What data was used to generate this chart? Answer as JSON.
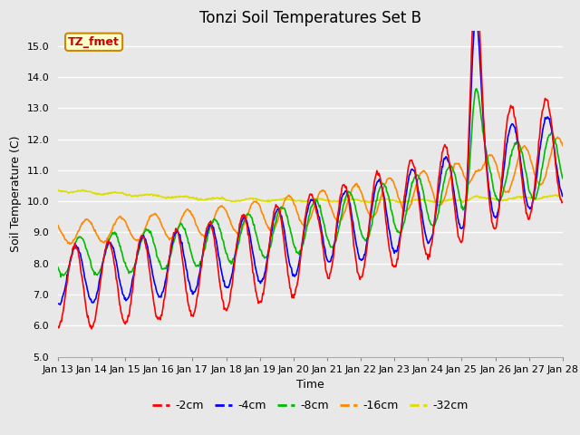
{
  "title": "Tonzi Soil Temperatures Set B",
  "xlabel": "Time",
  "ylabel": "Soil Temperature (C)",
  "ylim": [
    5.0,
    15.5
  ],
  "ylim_display": [
    5.0,
    15.0
  ],
  "yticks": [
    5.0,
    6.0,
    7.0,
    8.0,
    9.0,
    10.0,
    11.0,
    12.0,
    13.0,
    14.0,
    15.0
  ],
  "colors": {
    "-2cm": "#ff0000",
    "-4cm": "#0000ff",
    "-8cm": "#00bb00",
    "-16cm": "#ff8800",
    "-32cm": "#dddd00"
  },
  "bg_color": "#e8e8e8",
  "plot_bg_color": "#e8e8e8",
  "annotation_text": "TZ_fmet",
  "annotation_bg": "#ffffcc",
  "annotation_border": "#cc8800",
  "title_fontsize": 12,
  "label_fontsize": 9,
  "tick_fontsize": 8,
  "legend_fontsize": 9,
  "line_width": 1.2,
  "x_start": 13,
  "x_end": 28,
  "xtick_positions": [
    13,
    14,
    15,
    16,
    17,
    18,
    19,
    20,
    21,
    22,
    23,
    24,
    25,
    26,
    27,
    28
  ],
  "xtick_labels": [
    "Jan 13",
    "Jan 14",
    "Jan 15",
    "Jan 16",
    "Jan 17",
    "Jan 18",
    "Jan 19",
    "Jan 20",
    "Jan 21",
    "Jan 22",
    "Jan 23",
    "Jan 24",
    "Jan 25",
    "Jan 26",
    "Jan 27",
    "Jan 28"
  ]
}
